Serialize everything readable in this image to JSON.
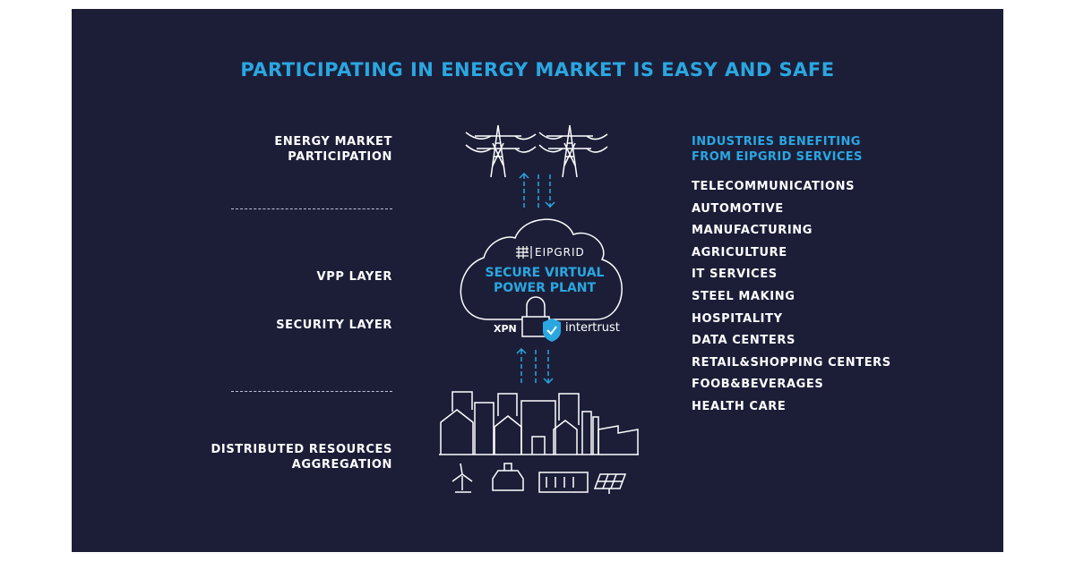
{
  "title": "PARTICIPATING IN ENERGY MARKET IS EASY AND SAFE",
  "layers": {
    "energy_market": [
      "ENERGY MARKET",
      "PARTICIPATION"
    ],
    "vpp": "VPP LAYER",
    "security": "SECURITY LAYER",
    "distributed": [
      "DISTRIBUTED RESOURCES",
      "AGGREGATION"
    ]
  },
  "center": {
    "brand": "EIPGRID",
    "cloud_label": [
      "SECURE VIRTUAL",
      "POWER PLANT"
    ],
    "xpn": "XPN",
    "partner": "intertrust",
    "icons": [
      "power-tower-icon",
      "arrow-up-icon",
      "arrow-down-icon",
      "cloud-icon",
      "lock-icon",
      "shield-check-icon",
      "city-buildings-icon",
      "factory-icon",
      "wind-turbine-icon",
      "electric-car-icon",
      "battery-icon",
      "solar-panel-icon"
    ]
  },
  "industries": {
    "heading": [
      "INDUSTRIES BENEFITING",
      "FROM EIPGRID SERVICES"
    ],
    "items": [
      "TELECOMMUNICATIONS",
      "AUTOMOTIVE",
      "MANUFACTURING",
      "AGRICULTURE",
      "IT SERVICES",
      "STEEL MAKING",
      "HOSPITALITY",
      "DATA CENTERS",
      "RETAIL&SHOPPING CENTERS",
      "FOOB&BEVERAGES",
      "HEALTH CARE"
    ]
  },
  "colors": {
    "background": "#1c1e38",
    "accent": "#2aa7e1",
    "text": "#ffffff"
  }
}
